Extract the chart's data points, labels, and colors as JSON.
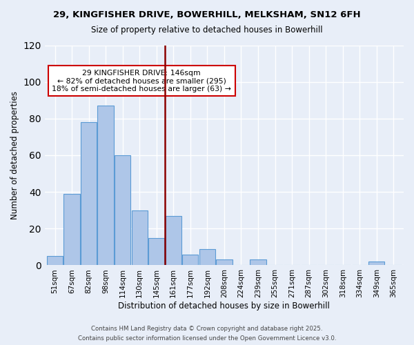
{
  "title": "29, KINGFISHER DRIVE, BOWERHILL, MELKSHAM, SN12 6FH",
  "subtitle": "Size of property relative to detached houses in Bowerhill",
  "xlabel": "Distribution of detached houses by size in Bowerhill",
  "ylabel": "Number of detached properties",
  "bar_color": "#aec6e8",
  "bar_edge_color": "#5b9bd5",
  "bg_color": "#e8eef8",
  "grid_color": "#ffffff",
  "bins": [
    "51sqm",
    "67sqm",
    "82sqm",
    "98sqm",
    "114sqm",
    "130sqm",
    "145sqm",
    "161sqm",
    "177sqm",
    "192sqm",
    "208sqm",
    "224sqm",
    "239sqm",
    "255sqm",
    "271sqm",
    "287sqm",
    "302sqm",
    "318sqm",
    "334sqm",
    "349sqm",
    "365sqm"
  ],
  "values": [
    5,
    39,
    78,
    87,
    60,
    30,
    15,
    27,
    6,
    9,
    3,
    0,
    3,
    0,
    0,
    0,
    0,
    0,
    0,
    2,
    0
  ],
  "vline_pos": 6.5,
  "vline_color": "#8b0000",
  "annotation_title": "29 KINGFISHER DRIVE: 146sqm",
  "annotation_line1": "← 82% of detached houses are smaller (295)",
  "annotation_line2": "18% of semi-detached houses are larger (63) →",
  "annotation_box_color": "#ffffff",
  "annotation_box_edge": "#cc0000",
  "ylim": [
    0,
    120
  ],
  "yticks": [
    0,
    20,
    40,
    60,
    80,
    100,
    120
  ],
  "footnote1": "Contains HM Land Registry data © Crown copyright and database right 2025.",
  "footnote2": "Contains public sector information licensed under the Open Government Licence v3.0."
}
